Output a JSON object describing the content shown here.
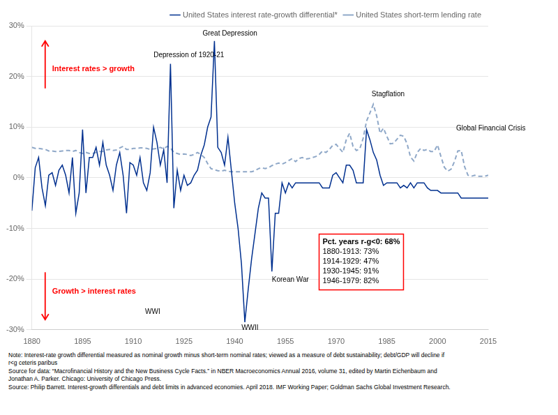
{
  "chart_data": {
    "type": "line",
    "xlim": [
      1880,
      2015
    ],
    "xticks": [
      1880,
      1895,
      1910,
      1925,
      1940,
      1955,
      1970,
      1985,
      2000,
      2015
    ],
    "ylim": [
      -0.3,
      0.3
    ],
    "yticks": [
      {
        "value": -0.3,
        "label": "-30%"
      },
      {
        "value": -0.2,
        "label": "-20%"
      },
      {
        "value": -0.1,
        "label": "-10%"
      },
      {
        "value": 0.0,
        "label": "0%"
      },
      {
        "value": 0.1,
        "label": "10%"
      },
      {
        "value": 0.2,
        "label": "20%"
      },
      {
        "value": 0.3,
        "label": "30%"
      }
    ],
    "grid": "y",
    "legend": "upper right",
    "series": [
      {
        "name": "United States interest rate-growth differential*",
        "color": "#00308F",
        "line_style": "solid",
        "x": [
          1880,
          1881,
          1882,
          1883,
          1884,
          1885,
          1886,
          1887,
          1888,
          1889,
          1890,
          1891,
          1892,
          1893,
          1894,
          1895,
          1896,
          1897,
          1898,
          1899,
          1900,
          1901,
          1902,
          1903,
          1904,
          1905,
          1906,
          1907,
          1908,
          1909,
          1910,
          1911,
          1912,
          1913,
          1914,
          1915,
          1916,
          1917,
          1918,
          1919,
          1920,
          1921,
          1922,
          1923,
          1924,
          1925,
          1926,
          1927,
          1928,
          1929,
          1930,
          1931,
          1932,
          1933,
          1934,
          1935,
          1936,
          1937,
          1938,
          1939,
          1940,
          1941,
          1942,
          1943,
          1944,
          1945,
          1946,
          1947,
          1948,
          1949,
          1950,
          1951,
          1952,
          1953,
          1954,
          1955,
          1956,
          1957,
          1958,
          1959,
          1960,
          1961,
          1962,
          1963,
          1964,
          1965,
          1966,
          1967,
          1968,
          1969,
          1970,
          1971,
          1972,
          1973,
          1974,
          1975,
          1976,
          1977,
          1978,
          1979,
          1980,
          1981,
          1982,
          1983,
          1984,
          1985,
          1986,
          1987,
          1988,
          1989,
          1990,
          1991,
          1992,
          1993,
          1994,
          1995,
          1996,
          1997,
          1998,
          1999,
          2000,
          2001,
          2002,
          2003,
          2004,
          2005,
          2006,
          2007,
          2008,
          2009,
          2010,
          2011,
          2012,
          2013,
          2014,
          2015
        ],
        "values": [
          -0.065,
          0.02,
          0.04,
          -0.02,
          -0.055,
          0.005,
          0.01,
          -0.015,
          0.015,
          0.025,
          0.005,
          -0.03,
          0.04,
          -0.07,
          -0.03,
          0.095,
          -0.03,
          0.04,
          0.04,
          0.06,
          0.025,
          0.07,
          0.025,
          0.005,
          -0.025,
          0.025,
          0.05,
          0.005,
          -0.07,
          0.03,
          0.025,
          0.005,
          0.04,
          -0.01,
          -0.025,
          0.01,
          0.1,
          0.07,
          0.025,
          0.055,
          -0.01,
          0.225,
          -0.06,
          0.015,
          -0.025,
          0.005,
          -0.015,
          -0.01,
          0.005,
          0.015,
          0.045,
          0.065,
          0.1,
          0.12,
          0.27,
          0.06,
          0.05,
          0.025,
          0.08,
          0.015,
          -0.05,
          -0.1,
          -0.17,
          -0.285,
          -0.22,
          -0.16,
          -0.11,
          -0.06,
          -0.03,
          -0.04,
          -0.04,
          -0.185,
          -0.07,
          -0.07,
          -0.01,
          -0.03,
          -0.01,
          -0.02,
          -0.01,
          -0.01,
          -0.01,
          -0.01,
          -0.01,
          -0.01,
          -0.01,
          -0.01,
          -0.02,
          -0.02,
          -0.02,
          0.005,
          0.01,
          0.0,
          -0.01,
          0.025,
          0.025,
          0.015,
          -0.01,
          -0.01,
          -0.01,
          0.095,
          0.075,
          0.05,
          0.035,
          0.005,
          -0.015,
          -0.01,
          -0.01,
          -0.01,
          -0.01,
          -0.02,
          -0.015,
          -0.02,
          -0.01,
          -0.02,
          -0.01,
          -0.01,
          -0.01,
          -0.02,
          -0.025,
          -0.025,
          -0.025,
          -0.03,
          -0.03,
          -0.03,
          -0.03,
          -0.03,
          -0.03,
          -0.04,
          -0.04,
          -0.04,
          -0.04,
          -0.04,
          -0.04,
          -0.04,
          -0.04,
          -0.04
        ]
      },
      {
        "name": "United States short-term lending rate",
        "color": "#8FA8C8",
        "line_style": "dashed",
        "x": [
          1880,
          1881,
          1882,
          1883,
          1884,
          1885,
          1886,
          1887,
          1888,
          1889,
          1890,
          1891,
          1892,
          1893,
          1894,
          1895,
          1896,
          1897,
          1898,
          1899,
          1900,
          1901,
          1902,
          1903,
          1904,
          1905,
          1906,
          1907,
          1908,
          1909,
          1910,
          1911,
          1912,
          1913,
          1914,
          1915,
          1916,
          1917,
          1918,
          1919,
          1920,
          1921,
          1922,
          1923,
          1924,
          1925,
          1926,
          1927,
          1928,
          1929,
          1930,
          1931,
          1932,
          1933,
          1934,
          1935,
          1936,
          1937,
          1938,
          1939,
          1940,
          1941,
          1942,
          1943,
          1944,
          1945,
          1946,
          1947,
          1948,
          1949,
          1950,
          1951,
          1952,
          1953,
          1954,
          1955,
          1956,
          1957,
          1958,
          1959,
          1960,
          1961,
          1962,
          1963,
          1964,
          1965,
          1966,
          1967,
          1968,
          1969,
          1970,
          1971,
          1972,
          1973,
          1974,
          1975,
          1976,
          1977,
          1978,
          1979,
          1980,
          1981,
          1982,
          1983,
          1984,
          1985,
          1986,
          1987,
          1988,
          1989,
          1990,
          1991,
          1992,
          1993,
          1994,
          1995,
          1996,
          1997,
          1998,
          1999,
          2000,
          2001,
          2002,
          2003,
          2004,
          2005,
          2006,
          2007,
          2008,
          2009,
          2010,
          2011,
          2012,
          2013,
          2014,
          2015
        ],
        "values": [
          0.06,
          0.058,
          0.058,
          0.057,
          0.056,
          0.053,
          0.053,
          0.052,
          0.052,
          0.053,
          0.054,
          0.054,
          0.052,
          0.054,
          0.05,
          0.048,
          0.05,
          0.048,
          0.048,
          0.05,
          0.052,
          0.052,
          0.055,
          0.056,
          0.054,
          0.055,
          0.059,
          0.062,
          0.056,
          0.056,
          0.058,
          0.058,
          0.059,
          0.059,
          0.058,
          0.056,
          0.057,
          0.058,
          0.06,
          0.057,
          0.062,
          0.059,
          0.05,
          0.048,
          0.046,
          0.047,
          0.046,
          0.044,
          0.046,
          0.05,
          0.046,
          0.04,
          0.028,
          0.018,
          0.016,
          0.014,
          0.013,
          0.015,
          0.013,
          0.012,
          0.012,
          0.012,
          0.012,
          0.012,
          0.012,
          0.012,
          0.014,
          0.018,
          0.02,
          0.018,
          0.02,
          0.024,
          0.027,
          0.029,
          0.027,
          0.03,
          0.034,
          0.038,
          0.032,
          0.038,
          0.04,
          0.037,
          0.038,
          0.04,
          0.042,
          0.046,
          0.053,
          0.05,
          0.056,
          0.064,
          0.066,
          0.058,
          0.05,
          0.075,
          0.088,
          0.062,
          0.054,
          0.057,
          0.078,
          0.112,
          0.128,
          0.145,
          0.122,
          0.088,
          0.098,
          0.082,
          0.067,
          0.068,
          0.076,
          0.084,
          0.082,
          0.067,
          0.041,
          0.033,
          0.05,
          0.058,
          0.054,
          0.056,
          0.052,
          0.052,
          0.065,
          0.042,
          0.021,
          0.013,
          0.017,
          0.032,
          0.053,
          0.054,
          0.022,
          0.005,
          0.003,
          0.005,
          0.003,
          0.003,
          0.003,
          0.005
        ]
      }
    ],
    "annotations": [
      {
        "text": "Depression of 1920-21",
        "x": 1916,
        "y": 0.235
      },
      {
        "text": "Great Depression",
        "x": 1930.5,
        "y": 0.278
      },
      {
        "text": "WWI",
        "x": 1913.5,
        "y": -0.258
      },
      {
        "text": "WWII",
        "x": 1942,
        "y": -0.29
      },
      {
        "text": "Korean War",
        "x": 1951,
        "y": -0.195
      },
      {
        "text": "Stagflation",
        "x": 1980.5,
        "y": 0.158
      },
      {
        "text": "Global Financial Crisis",
        "x": 2005.5,
        "y": 0.09
      },
      {
        "text": "Interest rates > growth",
        "x": 1886,
        "y": 0.215,
        "color": "red",
        "arrow": "up"
      },
      {
        "text": "Growth > interest rates",
        "x": 1886,
        "y": -0.225,
        "color": "red",
        "arrow": "down"
      }
    ],
    "box": {
      "lines": [
        "Pct. years r-g<0: 68%",
        "1880-1913: 73%",
        "1914-1929: 47%",
        "1930-1945: 91%",
        "1946-1979: 82%"
      ],
      "x": 1966,
      "y": -0.118,
      "color": "red"
    },
    "note": "Note: Interest-rate growth differential measured as nominal growth minus short-term nominal rates; viewed as a measure of debt sustainability; debt/GDP will decline if\nr<g ceteris paribus\nSource for data: “Macrofinancial History and the New Business Cycle Facts.” in NBER Macroeconomics Annual 2016, volume 31, edited by Martin Eichenbaum and\nJonathan A. Parker. Chicago: University of Chicago Press.\nSource: Philip Barrett. Interest-growth differentials and debt limits in advanced economies. April 2018. IMF Working Paper; Goldman Sachs Global Investment Research."
  }
}
